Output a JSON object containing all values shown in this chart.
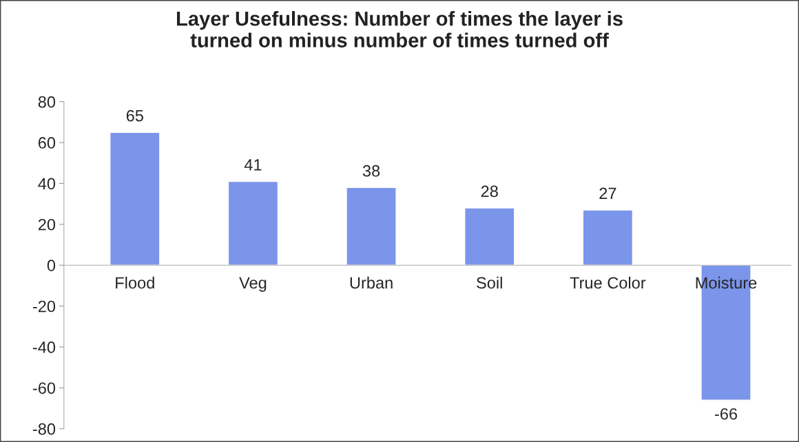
{
  "chart_data": {
    "type": "bar",
    "title": "Layer Usefulness: Number of times the layer is\nturned on minus number of times turned off",
    "categories": [
      "Flood",
      "Veg",
      "Urban",
      "Soil",
      "True Color",
      "Moisture"
    ],
    "values": [
      65,
      41,
      38,
      28,
      27,
      -66
    ],
    "color": "#7b95ea",
    "ylim": [
      -80,
      80
    ],
    "yticks": [
      -80,
      -60,
      -40,
      -20,
      0,
      20,
      40,
      60,
      80
    ],
    "data_labels": true,
    "grid": false,
    "legend": false
  }
}
